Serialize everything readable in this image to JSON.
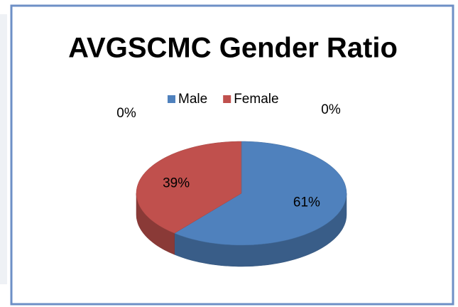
{
  "chart_data": {
    "type": "pie",
    "title": "AVGSCMC Gender Ratio",
    "categories": [
      "Male",
      "Female",
      null,
      null
    ],
    "values": [
      61,
      39,
      0,
      0
    ],
    "value_labels": [
      "61%",
      "39%",
      "0%",
      "0%"
    ],
    "colors": [
      "#4f81bd",
      "#c0504d",
      "#9bbb59",
      "#8064a2"
    ],
    "legend": "top",
    "three_d": true
  }
}
